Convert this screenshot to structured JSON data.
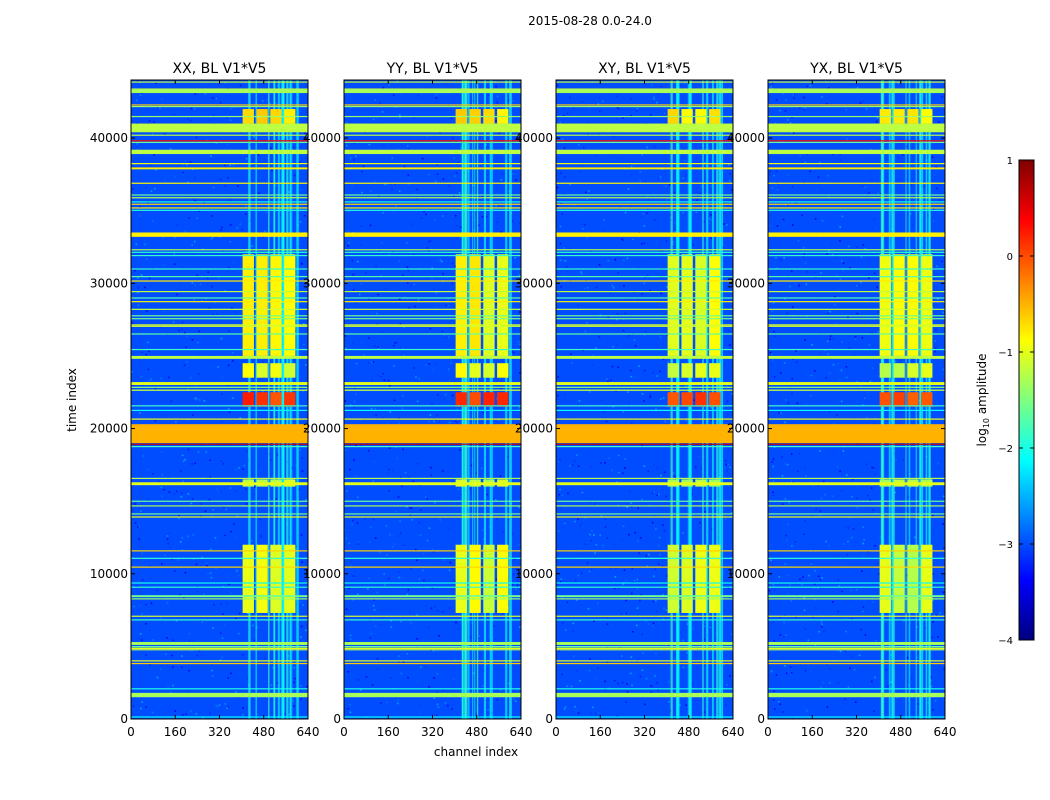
{
  "chart_data": {
    "type": "heatmap",
    "suptitle": "2015-08-28 0.0-24.0",
    "xlabel": "channel index",
    "ylabel": "time index",
    "xticks": [
      0,
      160,
      320,
      480,
      640
    ],
    "yticks": [
      0,
      10000,
      20000,
      30000,
      40000
    ],
    "xlim": [
      0,
      640
    ],
    "ylim": [
      0,
      44000
    ],
    "panels": [
      {
        "title": "XX, BL V1*V5",
        "pol": "XX"
      },
      {
        "title": "YY, BL V1*V5",
        "pol": "YY"
      },
      {
        "title": "XY, BL V1*V5",
        "pol": "XY"
      },
      {
        "title": "YX, BL V1*V5",
        "pol": "YX"
      }
    ],
    "colorbar": {
      "label_prefix": "log",
      "label_sub": "10",
      "label_suffix": " amplitude",
      "range": [
        -4,
        1
      ],
      "ticks": [
        "1",
        "0",
        "−1",
        "−2",
        "−3",
        "−4"
      ],
      "colormap": "jet"
    },
    "background_level": -3.0,
    "rfi_channel_band": [
      400,
      600
    ],
    "broad_horizontal_bands": [
      {
        "t0": 19000,
        "t1": 20300,
        "level": -0.5
      },
      {
        "t0": 40400,
        "t1": 41000,
        "level": -1.2
      },
      {
        "t0": 43100,
        "t1": 43400,
        "level": -1.3
      },
      {
        "t0": 33200,
        "t1": 33500,
        "level": -0.8
      },
      {
        "t0": 1500,
        "t1": 1800,
        "level": -1.3
      },
      {
        "t0": 5100,
        "t1": 5300,
        "level": -1.3
      },
      {
        "t0": 23000,
        "t1": 23200,
        "level": -1.0
      },
      {
        "t0": 16100,
        "t1": 16300,
        "level": -1.0
      },
      {
        "t0": 24800,
        "t1": 25000,
        "level": -1.2
      },
      {
        "t0": 38900,
        "t1": 39200,
        "level": -1.2
      }
    ],
    "bright_blocks": [
      {
        "t0": 7300,
        "t1": 12000,
        "level": -1.0
      },
      {
        "t0": 23500,
        "t1": 24500,
        "level": -1.0
      },
      {
        "t0": 25000,
        "t1": 32000,
        "level": -0.9
      },
      {
        "t0": 41000,
        "t1": 42000,
        "level": -0.7
      },
      {
        "t0": 16000,
        "t1": 16500,
        "level": -1.2
      },
      {
        "t0": 21500,
        "t1": 22500,
        "level": 0.1
      }
    ]
  }
}
